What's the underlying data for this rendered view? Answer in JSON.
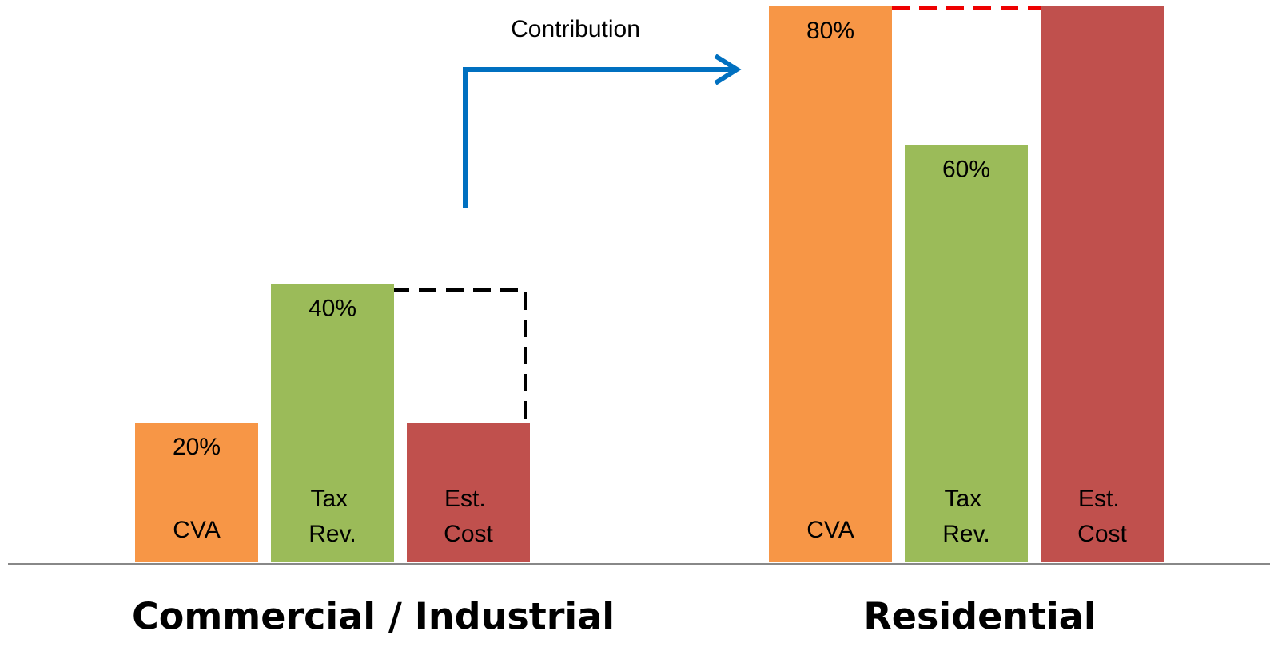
{
  "chart_data": {
    "type": "bar",
    "annotation": "Contribution",
    "categories": [
      "Commercial / Industrial",
      "Residential"
    ],
    "series": [
      {
        "name": "CVA",
        "color": "#f79646",
        "values": [
          20,
          80
        ],
        "value_labels": [
          "20%",
          "80%"
        ]
      },
      {
        "name": "Tax Rev.",
        "color": "#9bbb59",
        "values": [
          40,
          60
        ],
        "value_labels": [
          "40%",
          "60%"
        ]
      },
      {
        "name": "Est. Cost",
        "color": "#c0504d",
        "values": [
          20,
          80
        ],
        "value_labels": [
          null,
          null
        ]
      }
    ],
    "ylim": [
      0,
      80
    ]
  }
}
